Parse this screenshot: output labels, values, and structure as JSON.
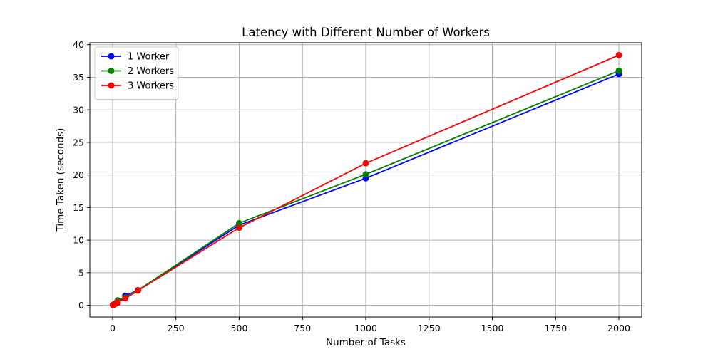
{
  "chart_data": {
    "type": "line",
    "title": "Latency with Different Number of Workers",
    "xlabel": "Number of Tasks",
    "ylabel": "Time Taken (seconds)",
    "xlim": [
      -90,
      2090
    ],
    "ylim": [
      -1.8,
      40.3
    ],
    "xticks": [
      0,
      250,
      500,
      750,
      1000,
      1250,
      1500,
      1750,
      2000
    ],
    "yticks": [
      0,
      5,
      10,
      15,
      20,
      25,
      30,
      35,
      40
    ],
    "grid": true,
    "legend_position": "upper left",
    "series": [
      {
        "name": "1 Worker",
        "color": "#0000ff",
        "x": [
          1,
          5,
          10,
          20,
          50,
          100,
          500,
          1000,
          2000
        ],
        "y": [
          0.05,
          0.1,
          0.2,
          0.4,
          1.45,
          2.3,
          12.3,
          19.5,
          35.5
        ]
      },
      {
        "name": "2 Workers",
        "color": "#008000",
        "x": [
          1,
          5,
          10,
          20,
          50,
          100,
          500,
          1000,
          2000
        ],
        "y": [
          0.05,
          0.1,
          0.25,
          0.75,
          1.2,
          2.3,
          12.6,
          20.1,
          36.0
        ]
      },
      {
        "name": "3 Workers",
        "color": "#ff0000",
        "x": [
          1,
          5,
          10,
          20,
          50,
          100,
          500,
          1000,
          2000
        ],
        "y": [
          0.05,
          0.12,
          0.2,
          0.45,
          1.05,
          2.25,
          11.9,
          21.8,
          38.4
        ]
      }
    ]
  }
}
